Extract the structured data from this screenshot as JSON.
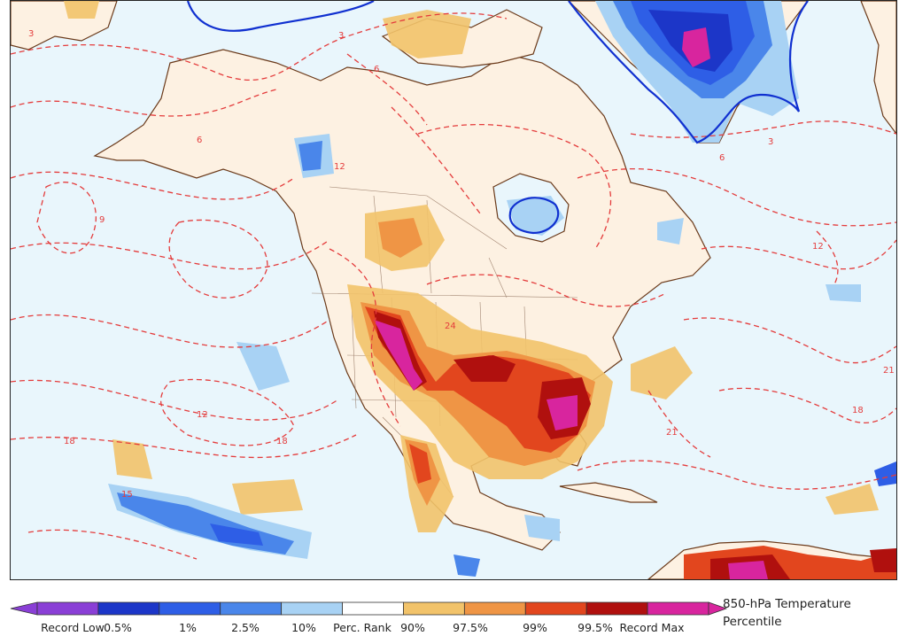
{
  "map": {
    "variable": "850-hPa Temperature Percentile",
    "contour_labels": [
      "3",
      "3",
      "3",
      "6",
      "6",
      "6",
      "9",
      "12",
      "12",
      "12",
      "15",
      "18",
      "18",
      "18",
      "21",
      "21",
      "24"
    ]
  },
  "colorbar": {
    "title_line1": "850-hPa Temperature",
    "title_line2": "Percentile",
    "labels": [
      "Record Low",
      "0.5%",
      "1%",
      "2.5%",
      "10%",
      "Perc. Rank",
      "90%",
      "97.5%",
      "99%",
      "99.5%",
      "Record Max"
    ],
    "colors": [
      "#8a3fd6",
      "#1c36c8",
      "#2e5ee6",
      "#4a86ea",
      "#a8d2f4",
      "#ffffff",
      "#f2c36a",
      "#ef9545",
      "#e2461e",
      "#b0100e",
      "#d8259e"
    ]
  },
  "palette": {
    "ocean": "#e9f6fc",
    "land": "#fdf1e2",
    "coast": "#6b3a1a",
    "contour": "#e43c3c",
    "cold_contour": "#1030d0"
  }
}
